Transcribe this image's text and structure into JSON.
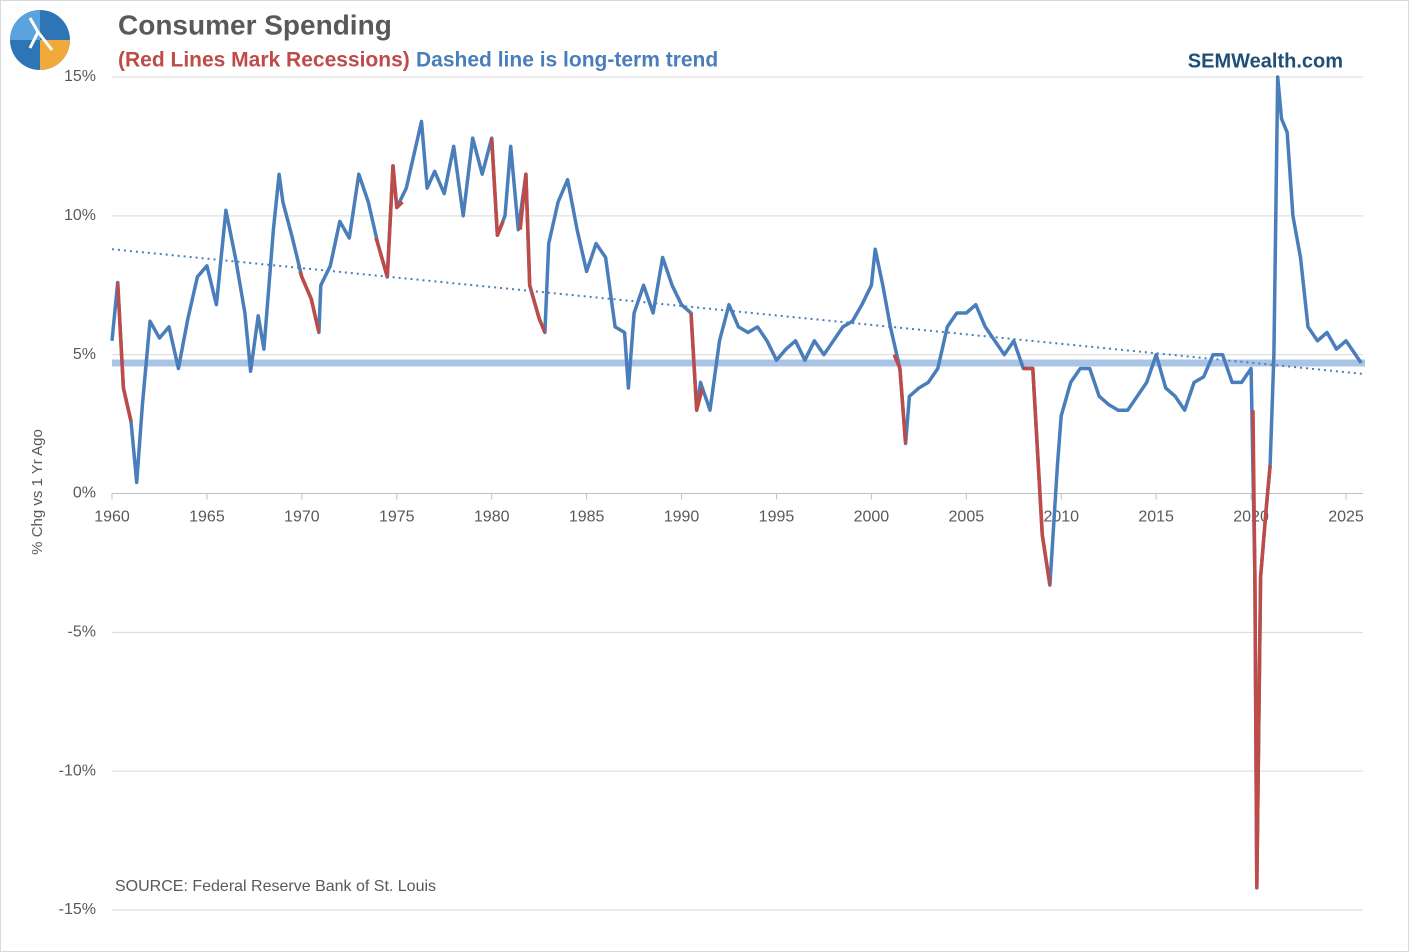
{
  "chart_data": {
    "type": "line",
    "title": "Consumer Spending",
    "subtitle_red": "(Red Lines Mark Recessions)",
    "subtitle_blue": "Dashed line is long-term trend",
    "brand": "SEMWealth.com",
    "ylabel": "% Chg vs 1 Yr Ago",
    "source": "SOURCE:  Federal Reserve Bank of St. Louis",
    "xlim": [
      1960,
      2026
    ],
    "xticks": [
      1960,
      1965,
      1970,
      1975,
      1980,
      1985,
      1990,
      1995,
      2000,
      2005,
      2010,
      2015,
      2020,
      2025
    ],
    "ylim": [
      -15,
      15
    ],
    "yticks": [
      {
        "value": -15,
        "label": "-15%"
      },
      {
        "value": -10,
        "label": "-10%"
      },
      {
        "value": -5,
        "label": "-5%"
      },
      {
        "value": 0,
        "label": "0%"
      },
      {
        "value": 5,
        "label": "5%"
      },
      {
        "value": 10,
        "label": "10%"
      },
      {
        "value": 15,
        "label": "15%"
      }
    ],
    "grid": true,
    "series": [
      {
        "color": "#a9c4e4",
        "style": "band",
        "x": [
          1960,
          2026
        ],
        "values": [
          4.7,
          4.7
        ]
      },
      {
        "color": "#4a7ebb",
        "style": "solid",
        "x": [
          1960,
          1960.3,
          1960.6,
          1961,
          1961.3,
          1961.6,
          1962,
          1962.5,
          1963,
          1963.5,
          1964,
          1964.5,
          1965,
          1965.5,
          1966,
          1966.5,
          1967,
          1967.3,
          1967.7,
          1968,
          1968.5,
          1968.8,
          1969,
          1969.5,
          1970,
          1970.5,
          1970.9,
          1971,
          1971.5,
          1972,
          1972.5,
          1973,
          1973.5,
          1974,
          1974.5,
          1974.8,
          1975,
          1975.5,
          1976,
          1976.3,
          1976.6,
          1977,
          1977.5,
          1978,
          1978.5,
          1979,
          1979.5,
          1980,
          1980.3,
          1980.7,
          1981,
          1981.4,
          1981.8,
          1982,
          1982.5,
          1982.8,
          1983,
          1983.5,
          1984,
          1984.5,
          1985,
          1985.5,
          1986,
          1986.5,
          1987,
          1987.2,
          1987.5,
          1988,
          1988.5,
          1989,
          1989.5,
          1990,
          1990.5,
          1990.8,
          1991,
          1991.5,
          1992,
          1992.5,
          1993,
          1993.5,
          1994,
          1994.5,
          1995,
          1995.5,
          1996,
          1996.5,
          1997,
          1997.5,
          1998,
          1998.5,
          1999,
          1999.5,
          2000,
          2000.2,
          2000.6,
          2001,
          2001.5,
          2001.8,
          2002,
          2002.5,
          2003,
          2003.5,
          2004,
          2004.5,
          2005,
          2005.5,
          2006,
          2006.5,
          2007,
          2007.5,
          2008,
          2008.5,
          2009,
          2009.4,
          2009.8,
          2010,
          2010.5,
          2011,
          2011.5,
          2012,
          2012.5,
          2013,
          2013.5,
          2014,
          2014.5,
          2015,
          2015.5,
          2016,
          2016.5,
          2017,
          2017.5,
          2018,
          2018.5,
          2019,
          2019.5,
          2020,
          2020.2,
          2020.3,
          2020.5,
          2020.8,
          2021,
          2021.2,
          2021.4,
          2021.6,
          2021.9,
          2022.2,
          2022.6,
          2023,
          2023.5,
          2024,
          2024.5,
          2025,
          2025.8
        ],
        "values": [
          5.5,
          7.6,
          3.8,
          2.6,
          0.4,
          3.2,
          6.2,
          5.6,
          6.0,
          4.5,
          6.3,
          7.8,
          8.2,
          6.8,
          10.2,
          8.5,
          6.5,
          4.4,
          6.4,
          5.2,
          9.5,
          11.5,
          10.5,
          9.2,
          7.8,
          7.0,
          5.8,
          7.5,
          8.2,
          9.8,
          9.2,
          11.5,
          10.5,
          9.0,
          7.8,
          11.8,
          10.3,
          11.0,
          12.5,
          13.4,
          11.0,
          11.6,
          10.8,
          12.5,
          10.0,
          12.8,
          11.5,
          12.8,
          9.3,
          10.0,
          12.5,
          9.5,
          11.5,
          7.5,
          6.3,
          5.8,
          9.0,
          10.5,
          11.3,
          9.5,
          8.0,
          9.0,
          8.5,
          6.0,
          5.8,
          3.8,
          6.5,
          7.5,
          6.5,
          8.5,
          7.5,
          6.8,
          6.5,
          3.0,
          4.0,
          3.0,
          5.5,
          6.8,
          6.0,
          5.8,
          6.0,
          5.5,
          4.8,
          5.2,
          5.5,
          4.8,
          5.5,
          5.0,
          5.5,
          6.0,
          6.2,
          6.8,
          7.5,
          8.8,
          7.5,
          6.0,
          4.5,
          1.8,
          3.5,
          3.8,
          4.0,
          4.5,
          6.0,
          6.5,
          6.5,
          6.8,
          6.0,
          5.5,
          5.0,
          5.5,
          4.5,
          4.5,
          -1.5,
          -3.3,
          1.0,
          2.8,
          4.0,
          4.5,
          4.5,
          3.5,
          3.2,
          3.0,
          3.0,
          3.5,
          4.0,
          5.0,
          3.8,
          3.5,
          3.0,
          4.0,
          4.2,
          5.0,
          5.0,
          4.0,
          4.0,
          4.5,
          -3.0,
          -14.2,
          -3.0,
          -0.5,
          1.0,
          5.0,
          15.0,
          13.5,
          13.0,
          10.0,
          8.5,
          6.0,
          5.5,
          5.8,
          5.2,
          5.5,
          4.7
        ]
      },
      {
        "color": "#be4b48",
        "style": "solid",
        "x": [
          1960.3,
          1960.6,
          1961
        ],
        "values": [
          7.6,
          3.8,
          2.6
        ]
      },
      {
        "color": "#be4b48",
        "style": "solid",
        "x": [
          1969.9,
          1970,
          1970.5,
          1970.9
        ],
        "values": [
          8.0,
          7.8,
          7.0,
          5.8
        ]
      },
      {
        "color": "#be4b48",
        "style": "solid",
        "x": [
          1973.9,
          1974,
          1974.5,
          1974.8,
          1975,
          1975.3
        ],
        "values": [
          9.2,
          9.0,
          7.8,
          11.8,
          10.3,
          10.5
        ]
      },
      {
        "color": "#be4b48",
        "style": "solid",
        "x": [
          1980,
          1980.3,
          1980.6
        ],
        "values": [
          12.8,
          9.3,
          9.8
        ]
      },
      {
        "color": "#be4b48",
        "style": "solid",
        "x": [
          1981.5,
          1981.8,
          1982,
          1982.5,
          1982.8
        ],
        "values": [
          9.5,
          11.5,
          7.5,
          6.3,
          5.8
        ]
      },
      {
        "color": "#be4b48",
        "style": "solid",
        "x": [
          1990.5,
          1990.8,
          1991.1
        ],
        "values": [
          6.5,
          3.0,
          3.8
        ]
      },
      {
        "color": "#be4b48",
        "style": "solid",
        "x": [
          2001.2,
          2001.5,
          2001.8
        ],
        "values": [
          5.0,
          4.5,
          1.8
        ]
      },
      {
        "color": "#be4b48",
        "style": "solid",
        "x": [
          2008,
          2008.5,
          2009,
          2009.4
        ],
        "values": [
          4.5,
          4.5,
          -1.5,
          -3.3
        ]
      },
      {
        "color": "#be4b48",
        "style": "solid",
        "x": [
          2020.1,
          2020.2,
          2020.3,
          2020.5,
          2020.8,
          2021
        ],
        "values": [
          3.0,
          -3.0,
          -14.2,
          -3.0,
          -0.5,
          1.0
        ]
      },
      {
        "color": "#4a7ebb",
        "style": "dotted",
        "x": [
          1960,
          2026
        ],
        "values": [
          8.8,
          4.3
        ]
      }
    ]
  }
}
